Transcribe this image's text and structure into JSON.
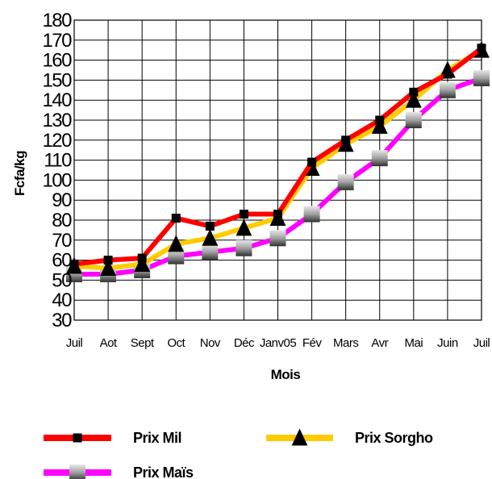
{
  "chart_data": {
    "type": "line",
    "xlabel": "Mois",
    "ylabel": "Fcfa/kg",
    "ylim": [
      30,
      180
    ],
    "ytick_step": 10,
    "grid": true,
    "legend_position": "bottom",
    "categories": [
      "Juil",
      "Aot",
      "Sept",
      "Oct",
      "Nov",
      "Déc",
      "Janv05",
      "Fév",
      "Mars",
      "Avr",
      "Mai",
      "Juin",
      "Juil"
    ],
    "series": [
      {
        "name": "Prix Mil",
        "color": "#ff0000",
        "marker": "square",
        "marker_color": "#000000",
        "values": [
          58,
          60,
          61,
          81,
          77,
          83,
          83,
          109,
          120,
          130,
          144,
          153,
          166
        ]
      },
      {
        "name": "Prix Sorgho",
        "color": "#ffcc00",
        "marker": "triangle",
        "marker_color": "#000000",
        "values": [
          57,
          56,
          58,
          68,
          71,
          76,
          81,
          106,
          118,
          127,
          140,
          155,
          165
        ]
      },
      {
        "name": "Prix Maïs",
        "color": "#ff00ff",
        "marker": "square-gradient",
        "marker_color": "#808080",
        "values": [
          53,
          53,
          55,
          62,
          64,
          66,
          71,
          83,
          99,
          111,
          130,
          145,
          151
        ]
      }
    ]
  }
}
